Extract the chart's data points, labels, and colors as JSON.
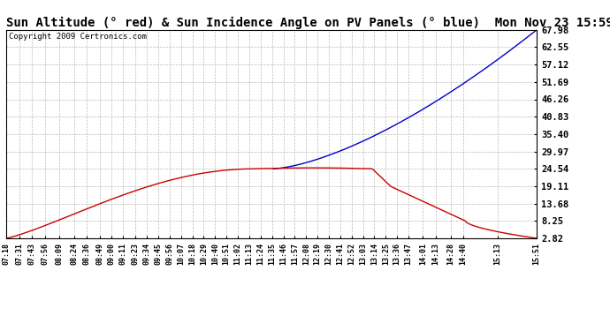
{
  "title": "Sun Altitude (° red) & Sun Incidence Angle on PV Panels (° blue)  Mon Nov 23 15:59",
  "copyright": "Copyright 2009 Certronics.com",
  "yticks": [
    2.82,
    8.25,
    13.68,
    19.11,
    24.54,
    29.97,
    35.4,
    40.83,
    46.26,
    51.69,
    57.12,
    62.55,
    67.98
  ],
  "ymin": 2.82,
  "ymax": 67.98,
  "background_color": "#ffffff",
  "plot_bg_color": "#ffffff",
  "grid_color": "#bbbbbb",
  "blue_line_color": "#0000cc",
  "red_line_color": "#cc0000",
  "title_fontsize": 10,
  "x_labels": [
    "07:18",
    "07:31",
    "07:43",
    "07:56",
    "08:09",
    "08:24",
    "08:36",
    "08:49",
    "09:00",
    "09:11",
    "09:23",
    "09:34",
    "09:45",
    "09:56",
    "10:07",
    "10:18",
    "10:29",
    "10:40",
    "10:51",
    "11:02",
    "11:13",
    "11:24",
    "11:35",
    "11:46",
    "11:57",
    "12:08",
    "12:19",
    "12:30",
    "12:41",
    "12:52",
    "13:03",
    "13:14",
    "13:25",
    "13:36",
    "13:47",
    "14:01",
    "14:13",
    "14:28",
    "14:40",
    "15:13",
    "15:51"
  ]
}
